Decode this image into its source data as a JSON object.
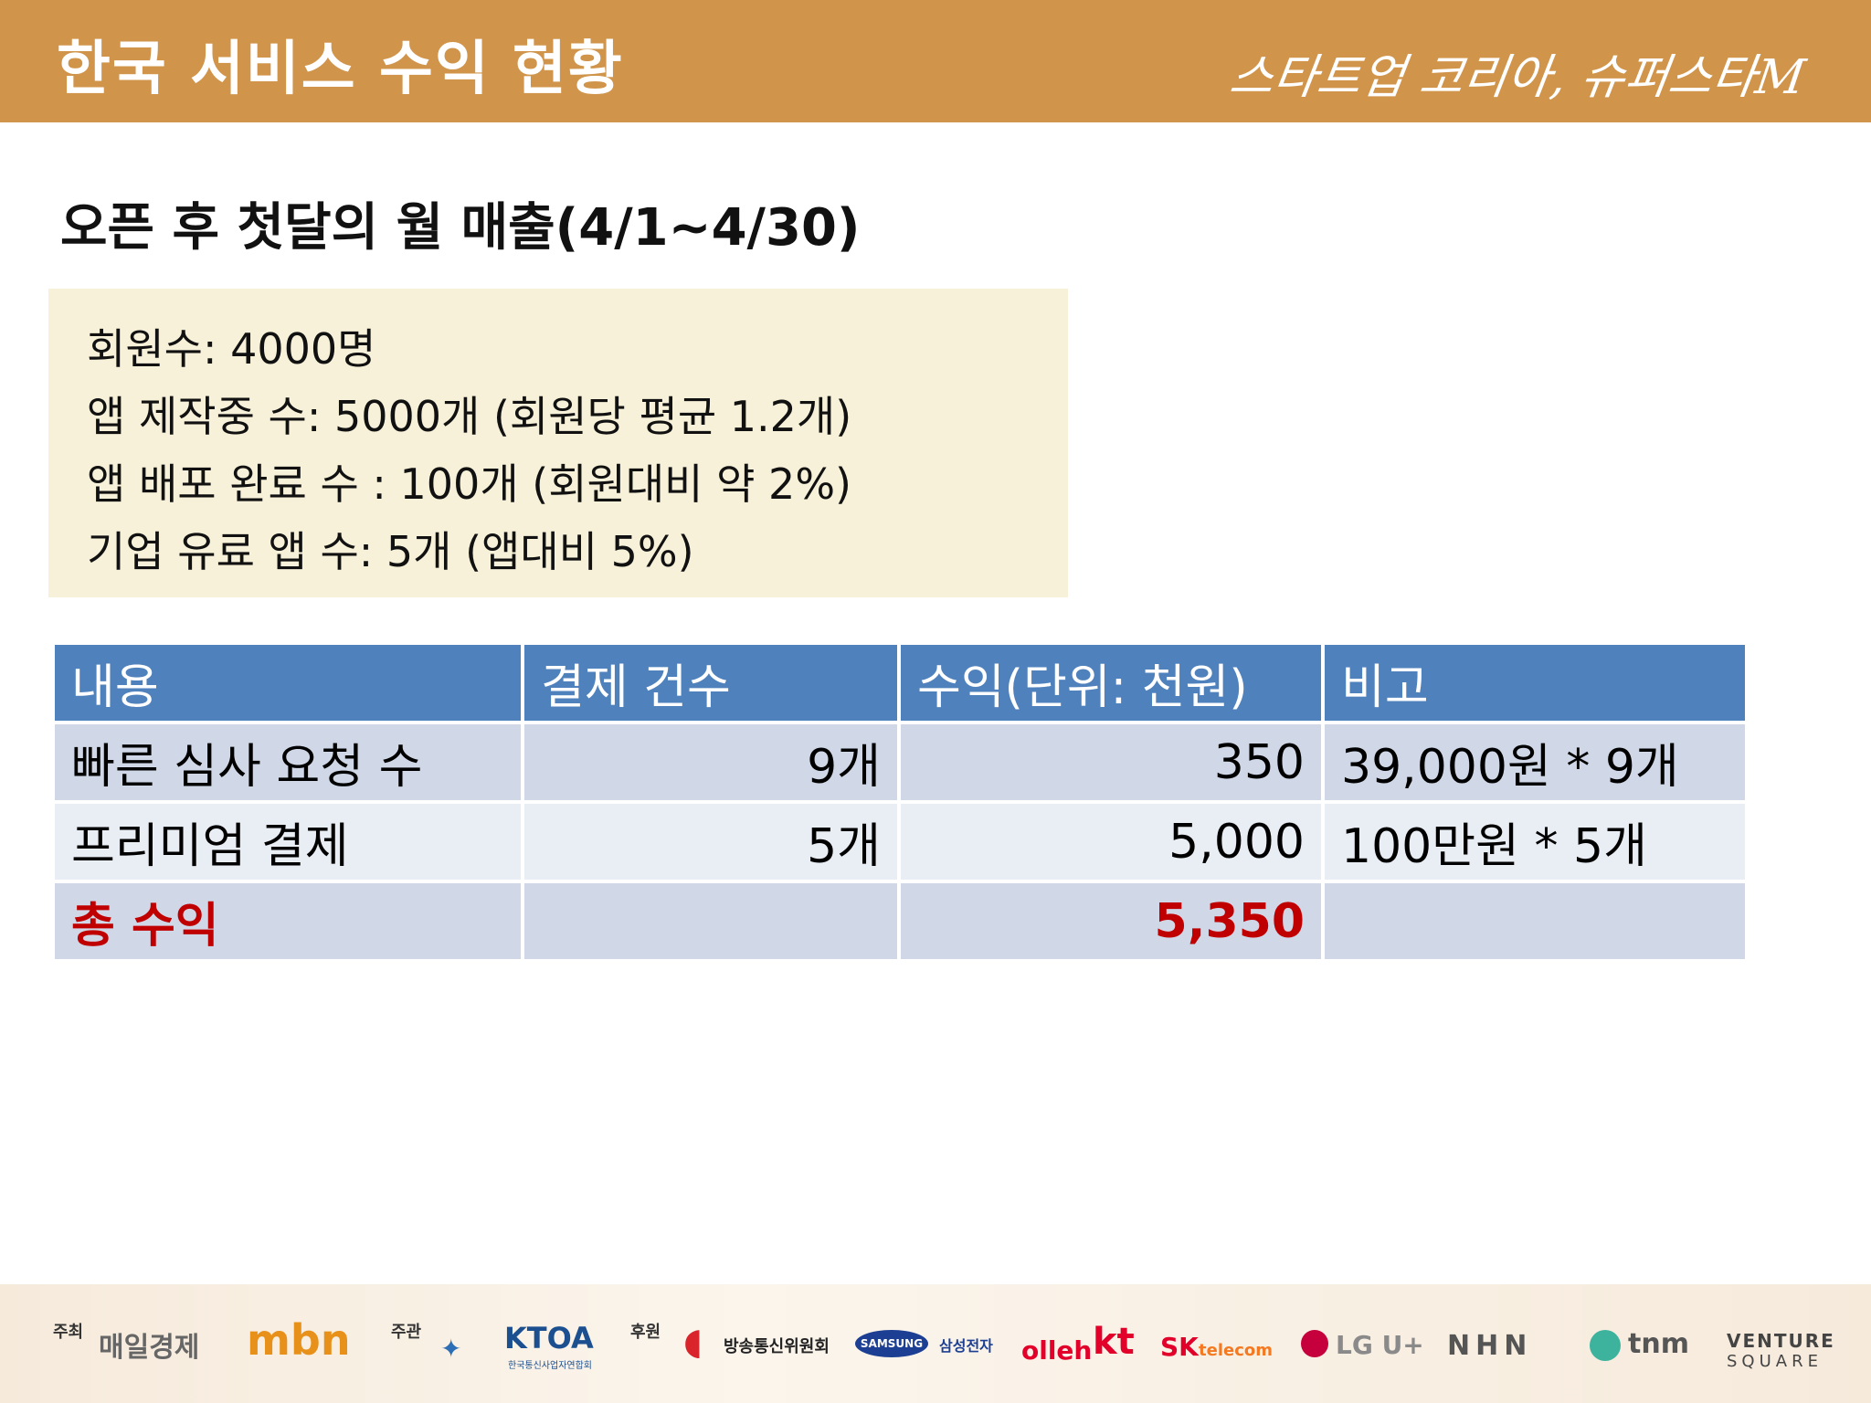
{
  "header": {
    "title": "한국 서비스 수익 현황",
    "brand": "스타트업 코리아, 슈퍼스타M"
  },
  "subtitle": "오픈 후 첫달의 월 매출(4/1~4/30)",
  "info": [
    "회원수: 4000명",
    "앱 제작중 수: 5000개 (회원당 평균 1.2개)",
    "앱 배포 완료 수 : 100개 (회원대비 약 2%)",
    "기업 유료 앱 수: 5개 (앱대비 5%)"
  ],
  "table": {
    "headers": [
      "내용",
      "결제 건수",
      "수익(단위: 천원)",
      "비고"
    ],
    "rows": [
      [
        "빠른 심사 요청 수",
        "9개",
        "350",
        "39,000원 * 9개"
      ],
      [
        "프리미엄 결제",
        "5개",
        "5,000",
        "100만원 * 5개"
      ],
      [
        "총 수익",
        "",
        "5,350",
        ""
      ]
    ]
  },
  "footer": {
    "host_label": "주최",
    "host_1": "매일경제",
    "host_2": "mbn",
    "organizer_label": "주관",
    "organizer": "KTOA",
    "organizer_sub": "한국통신사업자연합회",
    "sponsor_label": "후원",
    "sponsor_1": "방송통신위원회",
    "sponsor_2": "SAMSUNG",
    "sponsor_2_sub": "삼성전자",
    "sponsor_3a": "olleh",
    "sponsor_3b": "kt",
    "sponsor_4a": "SK",
    "sponsor_4b": "telecom",
    "sponsor_5": "LG U+",
    "sponsor_6": "NHN",
    "sponsor_7": "tnm",
    "sponsor_8a": "VENTURE",
    "sponsor_8b": "SQUARE"
  },
  "colors": {
    "header_bg": "#d0944a",
    "table_header_bg": "#4f81bd",
    "total_text": "#c00000",
    "info_box_bg": "#f6f1d8"
  }
}
